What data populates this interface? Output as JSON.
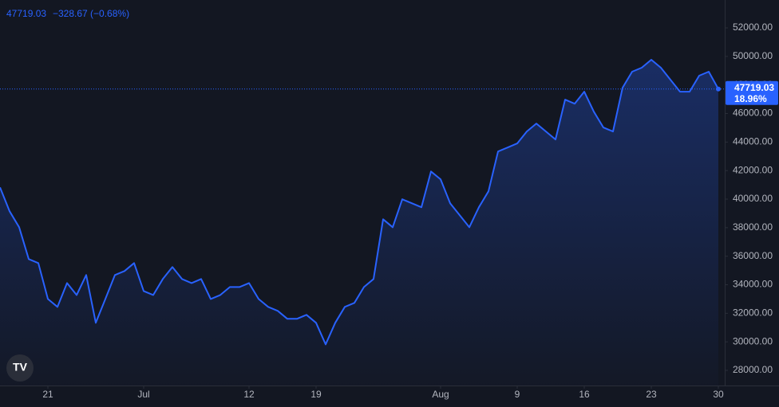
{
  "chart_data": {
    "type": "area",
    "change_label": "−328.67 (−0.68%)",
    "percent_label": "18.96%",
    "color": "#2962ff",
    "categories": [
      null,
      null,
      null,
      null,
      null,
      "21",
      null,
      null,
      null,
      null,
      null,
      null,
      null,
      null,
      null,
      "Jul",
      null,
      null,
      null,
      null,
      null,
      null,
      null,
      null,
      null,
      null,
      "12",
      null,
      null,
      null,
      null,
      null,
      null,
      "19",
      null,
      null,
      null,
      null,
      null,
      null,
      null,
      null,
      null,
      null,
      null,
      null,
      "Aug",
      null,
      null,
      null,
      null,
      null,
      null,
      null,
      "9",
      null,
      null,
      null,
      null,
      null,
      null,
      "16",
      null,
      null,
      null,
      null,
      null,
      null,
      "23",
      null,
      null,
      null,
      null,
      null,
      null,
      "30"
    ],
    "values": [
      40825,
      39150,
      38030,
      35800,
      35520,
      33000,
      32450,
      34120,
      33280,
      34680,
      31330,
      33000,
      34680,
      34960,
      35520,
      33560,
      33280,
      34400,
      35240,
      34400,
      34120,
      34400,
      33000,
      33280,
      33840,
      33840,
      34120,
      33000,
      32450,
      32170,
      31610,
      31610,
      31890,
      31330,
      29820,
      31330,
      32450,
      32730,
      33840,
      34400,
      38590,
      38030,
      39990,
      39710,
      39430,
      41940,
      41390,
      39710,
      38870,
      38030,
      39430,
      40550,
      43340,
      43620,
      43900,
      44740,
      45300,
      44740,
      44180,
      46970,
      46690,
      47530,
      46130,
      45020,
      44740,
      47810,
      48930,
      49210,
      49770,
      49210,
      48370,
      47530,
      47530,
      48650,
      48930,
      47719.03
    ],
    "ylim": [
      26940,
      53955
    ],
    "yticks": [
      {
        "value": 28000,
        "label": "28000.00"
      },
      {
        "value": 30000,
        "label": "30000.00"
      },
      {
        "value": 32000,
        "label": "32000.00"
      },
      {
        "value": 34000,
        "label": "34000.00"
      },
      {
        "value": 36000,
        "label": "36000.00"
      },
      {
        "value": 38000,
        "label": "38000.00"
      },
      {
        "value": 40000,
        "label": "40000.00"
      },
      {
        "value": 42000,
        "label": "42000.00"
      },
      {
        "value": 44000,
        "label": "44000.00"
      },
      {
        "value": 46000,
        "label": "46000.00"
      },
      {
        "value": 48000,
        "label": "48000.00"
      },
      {
        "value": 50000,
        "label": "50000.00"
      },
      {
        "value": 52000,
        "label": "52000.00"
      }
    ]
  }
}
